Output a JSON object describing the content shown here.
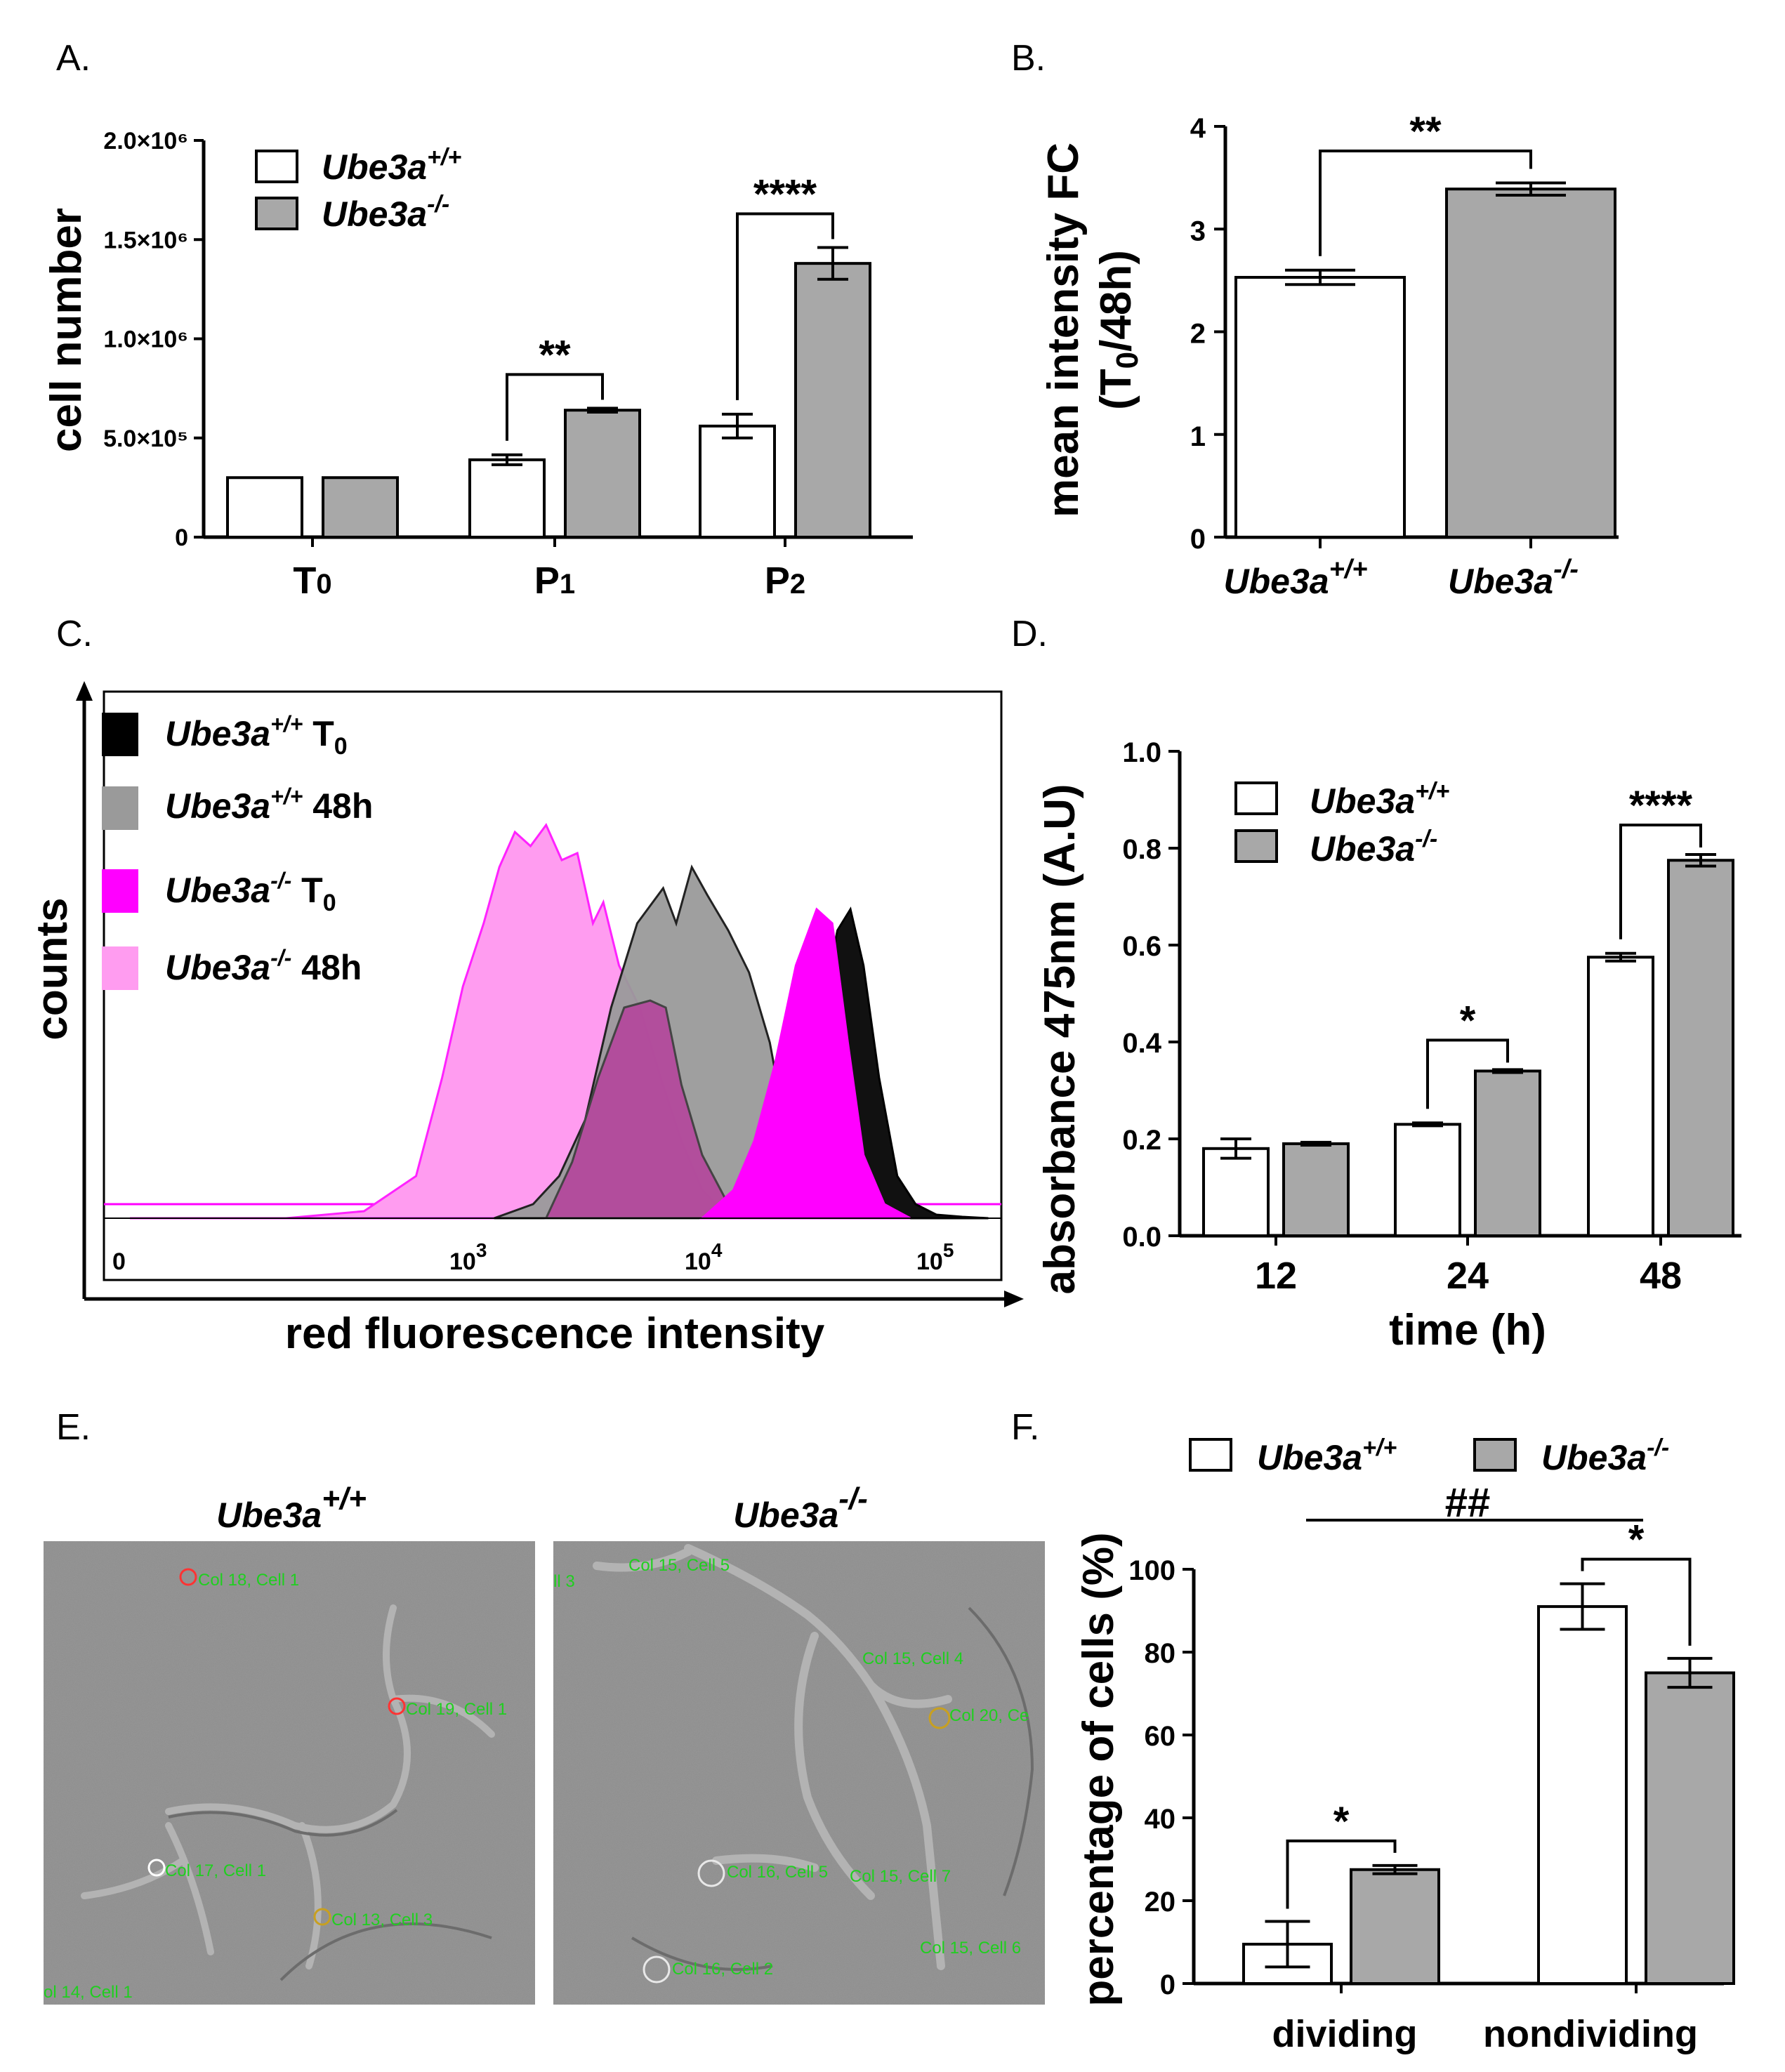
{
  "legend": {
    "wt": "Ube3a",
    "wt_sup": "+/+",
    "ko": "Ube3a",
    "ko_sup": "-/-"
  },
  "colors": {
    "wt_fill": "#ffffff",
    "ko_fill": "#a8a8a8",
    "stroke": "#000000"
  },
  "panels": {
    "A": {
      "label": "A."
    },
    "B": {
      "label": "B."
    },
    "C": {
      "label": "C."
    },
    "D": {
      "label": "D."
    },
    "E": {
      "label": "E."
    },
    "F": {
      "label": "F."
    }
  },
  "chart_data": [
    {
      "panel": "A",
      "type": "bar",
      "ylabel": "cell number",
      "categories": [
        "T0",
        "P1",
        "P2"
      ],
      "yticks": [
        {
          "value": 0,
          "label": "0"
        },
        {
          "value": 500000,
          "label": "5.0×10⁵"
        },
        {
          "value": 1000000,
          "label": "1.0×10⁶"
        },
        {
          "value": 1500000,
          "label": "1.5×10⁶"
        },
        {
          "value": 2000000,
          "label": "2.0×10⁶"
        }
      ],
      "ylim": [
        0,
        2000000
      ],
      "series": [
        {
          "name": "Ube3a+/+",
          "values": [
            300000,
            390000,
            560000
          ],
          "errors": [
            0,
            25000,
            60000
          ]
        },
        {
          "name": "Ube3a-/-",
          "values": [
            300000,
            640000,
            1380000
          ],
          "errors": [
            0,
            10000,
            80000
          ]
        }
      ],
      "significance": [
        {
          "category": "P1",
          "label": "**"
        },
        {
          "category": "P2",
          "label": "****"
        }
      ]
    },
    {
      "panel": "B",
      "type": "bar",
      "ylabel_line1": "mean intensity FC",
      "ylabel_line2": "(T0/48h)",
      "categories": [
        "Ube3a+/+",
        "Ube3a-/-"
      ],
      "yticks": [
        0,
        1,
        2,
        3,
        4
      ],
      "ylim": [
        0,
        4
      ],
      "values": [
        2.53,
        3.39
      ],
      "errors": [
        0.07,
        0.06
      ],
      "significance": "**"
    },
    {
      "panel": "C",
      "type": "area",
      "title": "",
      "ylabel": "counts",
      "xlabel": "red fluorescence intensity",
      "xticks": [
        "0",
        "10",
        "10",
        "10"
      ],
      "xtick_exps": [
        "",
        "3",
        "4",
        "5"
      ],
      "legend": [
        {
          "name": "Ube3a+/+ T0",
          "color": "#000000"
        },
        {
          "name": "Ube3a+/+ 48h",
          "color": "#9a9a9a"
        },
        {
          "name": "Ube3a-/- T0",
          "color": "#ff00ff"
        },
        {
          "name": "Ube3a-/- 48h",
          "color": "#ff9cf0"
        }
      ],
      "legend_text": {
        "l1_suffix": " T",
        "l1_sub": "0",
        "l2_suffix": " 48h",
        "l3_suffix": " T",
        "l3_sub": "0",
        "l4_suffix": " 48h"
      },
      "x_log_range": [
        1.8,
        5.25
      ],
      "series": [
        {
          "name": "Ube3a+/+ 48h",
          "peak_log": 4.06
        },
        {
          "name": "Ube3a+/+ T0",
          "peak_log": 4.67
        },
        {
          "name": "Ube3a-/- 48h",
          "peak_log": 3.48
        },
        {
          "name": "Ube3a-/- T0",
          "peak_log": 4.58
        }
      ]
    },
    {
      "panel": "D",
      "type": "bar",
      "ylabel": "absorbance 475nm (A.U)",
      "xlabel": "time (h)",
      "categories": [
        "12",
        "24",
        "48"
      ],
      "yticks": [
        "0.0",
        "0.2",
        "0.4",
        "0.6",
        "0.8",
        "1.0"
      ],
      "ylim": [
        0,
        1.0
      ],
      "series": [
        {
          "name": "Ube3a+/+",
          "values": [
            0.18,
            0.23,
            0.575
          ],
          "errors": [
            0.02,
            0.003,
            0.008
          ]
        },
        {
          "name": "Ube3a-/-",
          "values": [
            0.19,
            0.34,
            0.775
          ],
          "errors": [
            0.003,
            0.003,
            0.012
          ]
        }
      ],
      "significance": [
        {
          "category": "24",
          "label": "*"
        },
        {
          "category": "48",
          "label": "****"
        }
      ]
    },
    {
      "panel": "F",
      "type": "bar",
      "ylabel": "percentage of  cells (%)",
      "categories": [
        "dividing",
        "nondividing"
      ],
      "yticks": [
        0,
        20,
        40,
        60,
        80,
        100
      ],
      "ylim": [
        0,
        100
      ],
      "series": [
        {
          "name": "Ube3a+/+",
          "values": [
            9.5,
            91
          ],
          "errors": [
            5.5,
            5.5
          ]
        },
        {
          "name": "Ube3a-/-",
          "values": [
            27.5,
            75
          ],
          "errors": [
            1,
            3.5
          ]
        }
      ],
      "significance": [
        {
          "category": "dividing",
          "label": "*"
        },
        {
          "category": "nondividing",
          "label": "*"
        }
      ],
      "group_significance": "##"
    }
  ],
  "micrographs": {
    "left_title": "Ube3a",
    "left_sup": "+/+",
    "right_title": "Ube3a",
    "right_sup": "-/-",
    "left_annotations": [
      "Col 18, Cell 1",
      "Col 19, Cell 1",
      "Col 17, Cell 1",
      "Col 13, Cell 3",
      "ol 14, Cell 1"
    ],
    "right_annotations": [
      "Col 15, Cell 5",
      "ll 3",
      "Col 15, Cell 4",
      "Col 20, Ce",
      "Col 16, Cell 5",
      "Col 15, Cell 7",
      "Col 16, Cell 2",
      "Col 15, Cell 6"
    ]
  }
}
